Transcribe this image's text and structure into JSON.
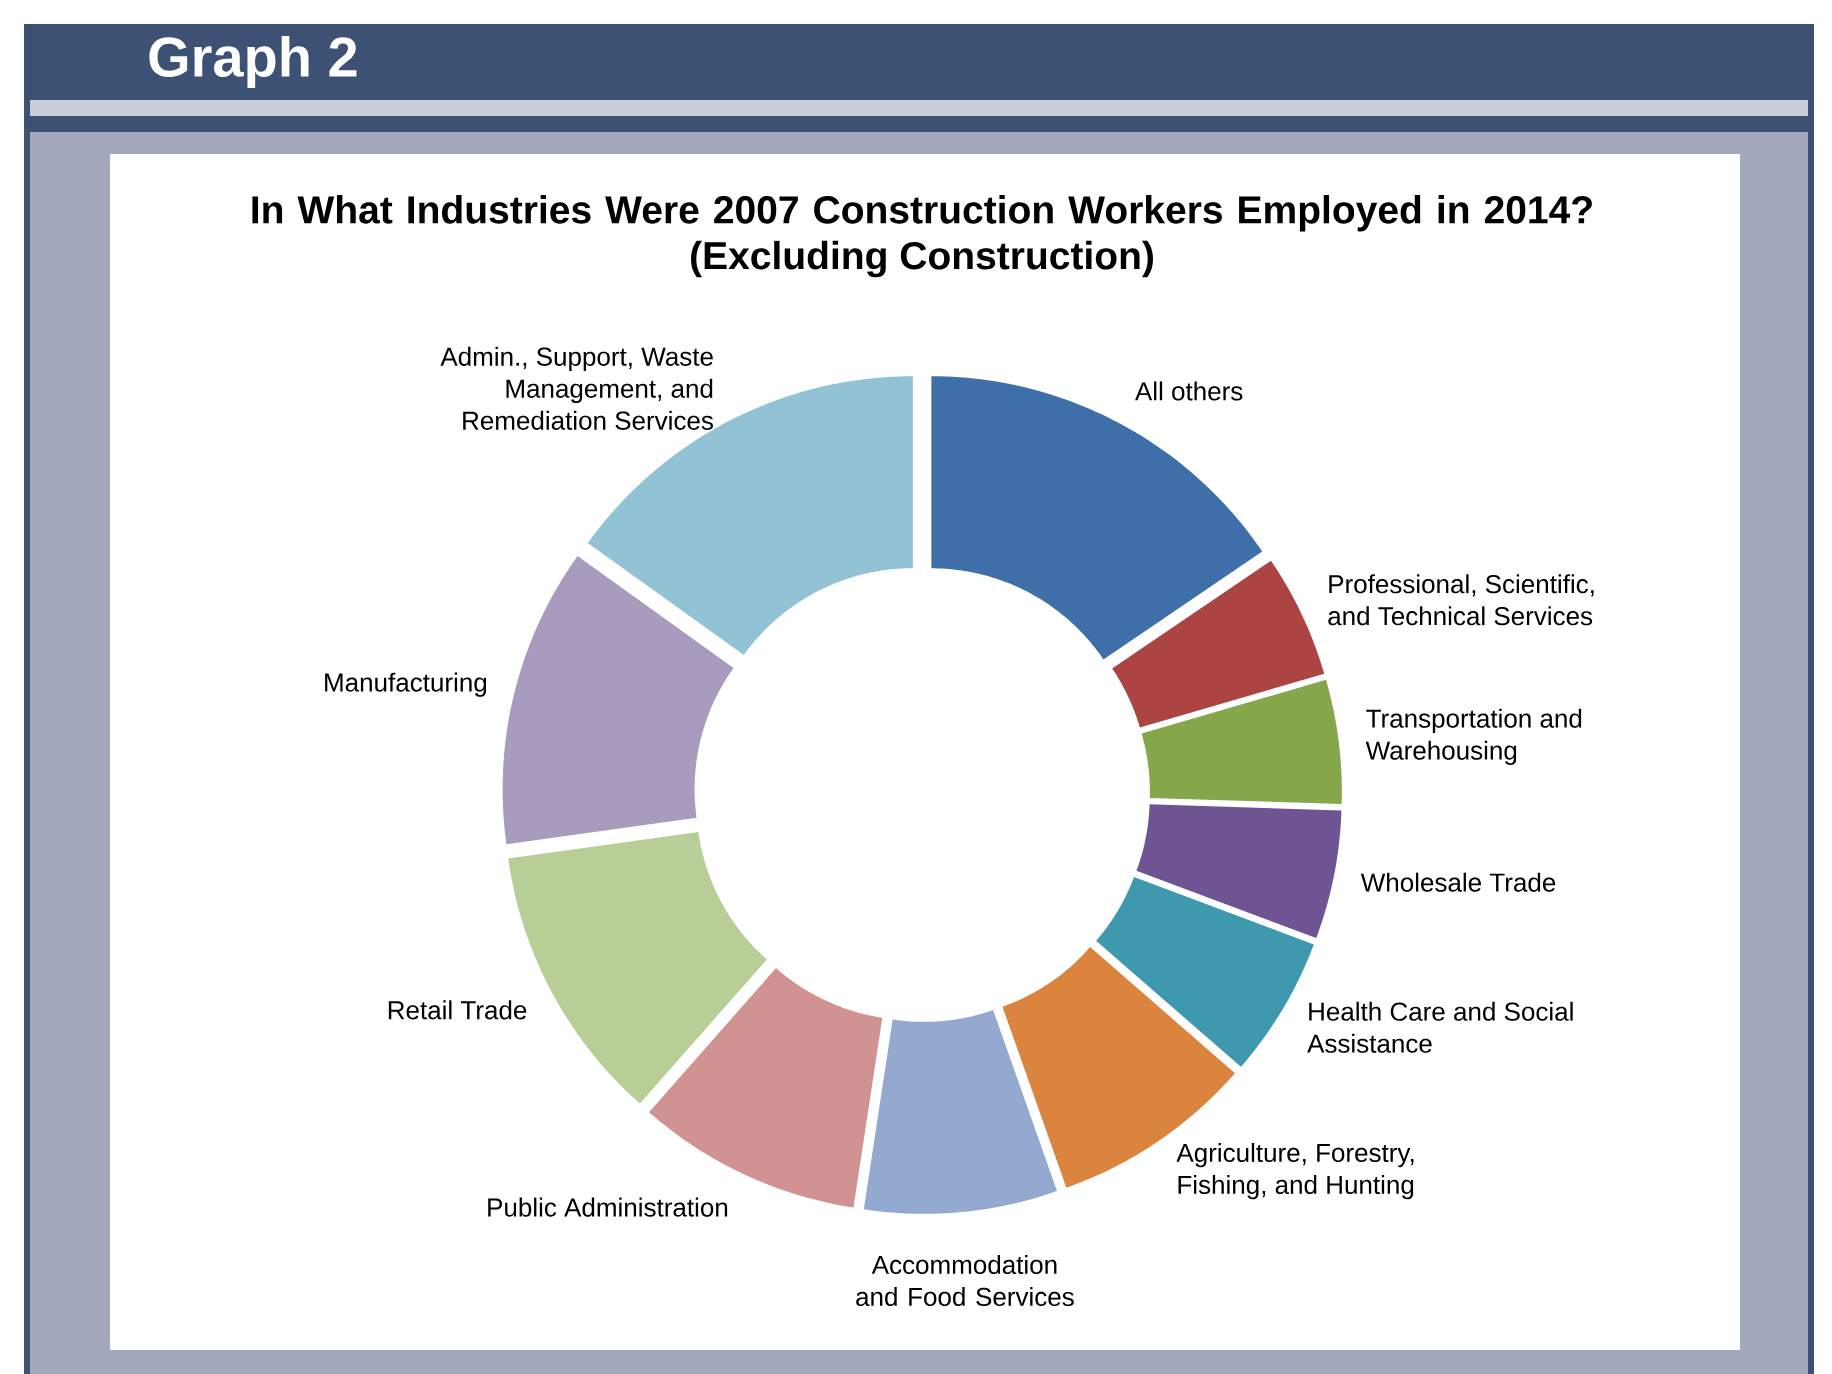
{
  "chart_data": {
    "type": "donut",
    "title": "In What Industries Were 2007 Construction Workers Employed in 2014?",
    "subtitle": "(Excluding Construction)",
    "annotations": [
      "Graph 2"
    ],
    "categories": [
      "All others",
      "Professional, Scientific, and Technical Services",
      "Transportation and Warehousing",
      "Wholesale Trade",
      "Health Care and Social Assistance",
      "Agriculture, Forestry, Fishing, and Hunting",
      "Accommodation and Food Services",
      "Public Administration",
      "Retail Trade",
      "Manufacturing",
      "Admin., Support, Waste Management, and Remediation Services"
    ],
    "values": [
      15.5,
      5,
      5,
      5.2,
      5.7,
      8.2,
      7.8,
      9.1,
      11.3,
      12.1,
      15.1
    ],
    "colors": [
      "#3f6fa8",
      "#ab4442",
      "#86a64a",
      "#6e5493",
      "#3e98ae",
      "#db843d",
      "#93a9cf",
      "#d09392",
      "#b9cd96",
      "#a99bbd",
      "#92c3d4"
    ]
  }
}
